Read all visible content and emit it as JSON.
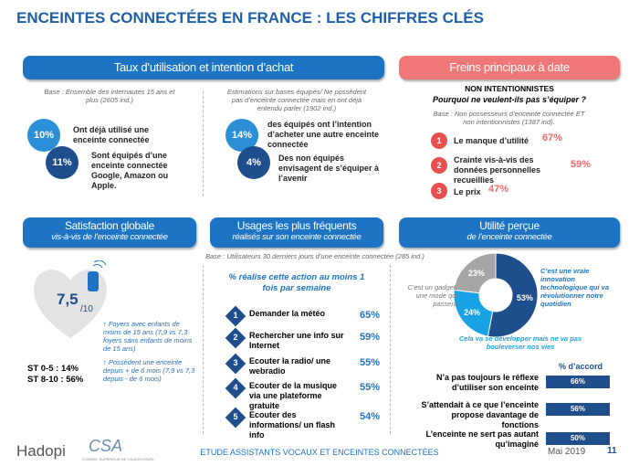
{
  "title": "ENCEINTES CONNECTÉES EN FRANCE : LES CHIFFRES CLÉS",
  "usage": {
    "header": "Taux d’utilisation et intention d’achat",
    "left": {
      "base": "Base : Ensemble des internautes 15 ans et plus (2605 ind.)",
      "items": [
        {
          "value": "10%",
          "text": "Ont déjà utilisé une enceinte connectée"
        },
        {
          "value": "11%",
          "text": "Sont équipés d’une enceinte connectée Google, Amazon ou Apple."
        }
      ]
    },
    "right": {
      "base": "Estimations sur bases équipés/ Ne possèdent pas d’enceinte connectée mais en ont déjà entendu parler (1902 ind.)",
      "items": [
        {
          "value": "14%",
          "text": "des équipés ont l’intention d’acheter une autre enceinte connectée"
        },
        {
          "value": "4%",
          "text": "Des non équipés envisagent de s’équiper à l’avenir"
        }
      ]
    }
  },
  "freins": {
    "header": "Freins principaux à date",
    "group": "NON INTENTIONNISTES",
    "question": "Pourquoi ne veulent-ils pas s’équiper ?",
    "base": "Base : Non possesseurs d’enceinte connectée ET non intentionnistes (1387 ind).",
    "items": [
      {
        "n": "1",
        "text": "Le manque d’utilité",
        "value": "67%"
      },
      {
        "n": "2",
        "text": "Crainte vis-à-vis des données personnelles recueillies",
        "value": "59%"
      },
      {
        "n": "3",
        "text": "Le prix",
        "value": "47%"
      }
    ]
  },
  "satisfaction": {
    "header": "Satisfaction globale",
    "subheader": "vis-à-vis de l’enceinte connectée",
    "score": "7,5",
    "scale": "/10",
    "notes": [
      "↑ Foyers avec enfants de moins de 15 ans (7,9 vs 7,3 foyers sans enfants de moins de 15 ans)",
      "↑ Possèdent une enceinte depuis + de 6 mois (7,9 vs 7,3 depuis - de 6 mois)"
    ],
    "stats": [
      "ST 0-5 : 14%",
      "ST 8-10 : 56%"
    ]
  },
  "usages": {
    "header": "Usages les plus fréquents",
    "subheader": "réalisés sur son enceinte connectée",
    "base": "Base : Utilisateurs 30 derniers jours d’une enceinte connectée (285 ind.)",
    "heading": "% réalise cette action au moins 1 fois par semaine",
    "items": [
      {
        "n": "1",
        "text": "Demander la météo",
        "value": "65%"
      },
      {
        "n": "2",
        "text": "Rechercher une info sur Internet",
        "value": "59%"
      },
      {
        "n": "3",
        "text": "Ecouter la radio/ une webradio",
        "value": "55%"
      },
      {
        "n": "4",
        "text": "Ecouter de la musique via une plateforme gratuite",
        "value": "55%"
      },
      {
        "n": "5",
        "text": "Ecouter des informations/ un flash info",
        "value": "54%"
      }
    ]
  },
  "utilite": {
    "header": "Utilité perçue",
    "subheader": "de l’enceinte connectée",
    "donut": {
      "values": [
        53,
        24,
        23
      ],
      "value_labels": [
        "53%",
        "24%",
        "23%"
      ],
      "colors": [
        "#1f4e8c",
        "#19a3e6",
        "#a6a6a6"
      ],
      "labels": [
        "C’est une vraie innovation technologique qui va révolutionner notre quotidien",
        "Cela va se développer mais ne va pas bouleverser nos vies",
        "C’est un gadget, une mode qui passera"
      ]
    },
    "accord_title": "% d’accord",
    "statements": [
      {
        "text": "N’a pas toujours le réflexe d’utiliser son enceinte",
        "value": "66%"
      },
      {
        "text": "S’attendait à ce que l’enceinte propose davantage de fonctions",
        "value": "56%"
      },
      {
        "text": "L’enceinte ne sert pas autant qu’imaginé",
        "value": "50%"
      }
    ]
  },
  "footer": {
    "brand1": "Hadopi",
    "brand2": "CSA",
    "brand2_sub": "CONSEIL SUPÉRIEUR DE L’AUDIOVISUEL",
    "study": "ETUDE ASSISTANTS VOCAUX ET ENCEINTES CONNECTÉES",
    "date": "Mai 2019",
    "page": "11"
  }
}
